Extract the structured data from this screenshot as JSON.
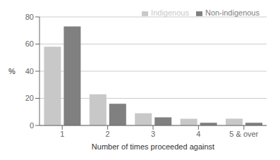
{
  "chart_data": {
    "type": "bar",
    "categories": [
      "1",
      "2",
      "3",
      "4",
      "5 & over"
    ],
    "series": [
      {
        "name": "Indigenous",
        "color": "#c8c8c8",
        "values": [
          58,
          23,
          9,
          5,
          5
        ]
      },
      {
        "name": "Non-indigenous",
        "color": "#808080",
        "values": [
          73,
          16,
          6,
          2,
          2
        ]
      }
    ],
    "xlabel": "Number of times proceeded against",
    "ylabel": "%",
    "ylim": [
      0,
      80
    ],
    "yticks": [
      0,
      20,
      40,
      60,
      80
    ],
    "grid": true,
    "legend": "upper right"
  }
}
